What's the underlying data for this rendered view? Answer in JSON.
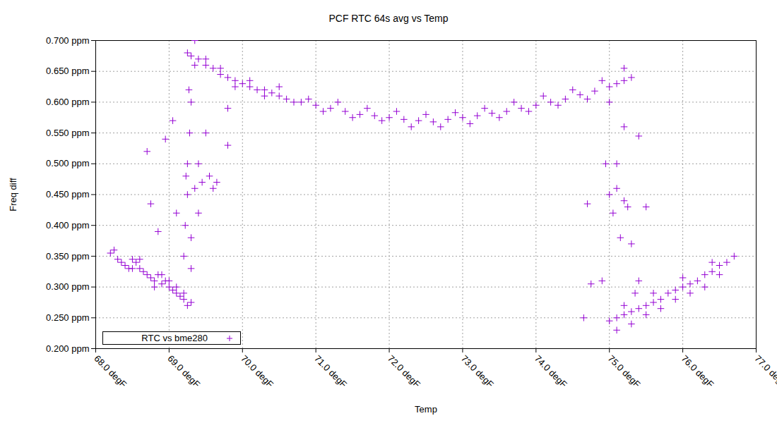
{
  "chart_data": {
    "type": "scatter",
    "title": "PCF RTC 64s avg vs Temp",
    "x_label": "Temp",
    "y_label": "Freq diff",
    "xlim": [
      68,
      77
    ],
    "ylim": [
      0.2,
      0.7
    ],
    "xticks": [
      {
        "value": 68,
        "label": "68.0 degF"
      },
      {
        "value": 69,
        "label": "69.0 degF"
      },
      {
        "value": 70,
        "label": "70.0 degF"
      },
      {
        "value": 71,
        "label": "71.0 degF"
      },
      {
        "value": 72,
        "label": "72.0 degF"
      },
      {
        "value": 73,
        "label": "73.0 degF"
      },
      {
        "value": 74,
        "label": "74.0 degF"
      },
      {
        "value": 75,
        "label": "75.0 degF"
      },
      {
        "value": 76,
        "label": "76.0 degF"
      },
      {
        "value": 77,
        "label": "77.0 degF"
      }
    ],
    "yticks": [
      {
        "value": 0.2,
        "label": "0.200 ppm"
      },
      {
        "value": 0.25,
        "label": "0.250 ppm"
      },
      {
        "value": 0.3,
        "label": "0.300 ppm"
      },
      {
        "value": 0.35,
        "label": "0.350 ppm"
      },
      {
        "value": 0.4,
        "label": "0.400 ppm"
      },
      {
        "value": 0.45,
        "label": "0.450 ppm"
      },
      {
        "value": 0.5,
        "label": "0.500 ppm"
      },
      {
        "value": 0.55,
        "label": "0.550 ppm"
      },
      {
        "value": 0.6,
        "label": "0.600 ppm"
      },
      {
        "value": 0.65,
        "label": "0.650 ppm"
      },
      {
        "value": 0.7,
        "label": "0.700 ppm"
      }
    ],
    "grid": true,
    "legend": "bottom left",
    "series": [
      {
        "name": "RTC vs bme280",
        "color": "#9400d3",
        "marker": "plus",
        "x": [
          68.2,
          68.25,
          68.3,
          68.35,
          68.4,
          68.45,
          68.5,
          68.55,
          68.6,
          68.65,
          68.7,
          68.75,
          68.8,
          68.85,
          68.9,
          68.95,
          69.0,
          69.05,
          69.1,
          69.15,
          69.2,
          69.25,
          69.3,
          68.5,
          68.6,
          68.8,
          68.9,
          69.0,
          69.1,
          69.2,
          69.2,
          69.22,
          69.25,
          69.25,
          69.23,
          69.28,
          69.3,
          69.27,
          69.3,
          69.35,
          69.4,
          69.45,
          69.5,
          69.55,
          69.6,
          69.65,
          69.4,
          69.3,
          69.1,
          69.05,
          68.95,
          68.7,
          68.75,
          68.85,
          69.8,
          69.8,
          69.35,
          69.25,
          69.3,
          69.4,
          69.5,
          69.6,
          69.7,
          69.8,
          69.9,
          70.0,
          70.1,
          70.2,
          70.3,
          70.4,
          70.5,
          70.6,
          70.8,
          71.0,
          71.2,
          71.4,
          71.6,
          71.8,
          72.0,
          72.2,
          72.4,
          72.6,
          72.8,
          73.0,
          73.2,
          73.4,
          73.6,
          73.8,
          74.0,
          74.2,
          74.4,
          74.6,
          74.8,
          75.0,
          75.1,
          75.2,
          75.3,
          69.35,
          69.5,
          69.7,
          69.9,
          70.1,
          70.3,
          70.5,
          70.7,
          70.9,
          71.1,
          71.3,
          71.5,
          71.7,
          71.9,
          72.1,
          72.3,
          72.5,
          72.7,
          72.9,
          73.1,
          73.3,
          73.5,
          73.7,
          73.9,
          74.1,
          74.3,
          74.5,
          74.7,
          74.9,
          75.2,
          75.0,
          74.95,
          75.0,
          75.05,
          75.1,
          75.15,
          75.2,
          75.25,
          75.3,
          75.35,
          75.4,
          75.5,
          75.4,
          75.2,
          74.9,
          74.7,
          74.75,
          74.65,
          75.1,
          75.0,
          75.1,
          75.2,
          75.3,
          75.4,
          75.5,
          75.6,
          75.7,
          75.8,
          75.9,
          76.0,
          76.1,
          76.2,
          76.3,
          76.4,
          76.5,
          76.6,
          76.7,
          75.1,
          75.3,
          75.5,
          75.7,
          75.9,
          76.1,
          76.3,
          76.5,
          75.2,
          75.6,
          76.0,
          76.4
        ],
        "values": [
          0.355,
          0.36,
          0.345,
          0.34,
          0.335,
          0.33,
          0.345,
          0.34,
          0.33,
          0.325,
          0.32,
          0.315,
          0.31,
          0.32,
          0.305,
          0.31,
          0.3,
          0.295,
          0.29,
          0.285,
          0.28,
          0.27,
          0.275,
          0.33,
          0.345,
          0.3,
          0.32,
          0.31,
          0.3,
          0.29,
          0.35,
          0.4,
          0.45,
          0.5,
          0.48,
          0.55,
          0.6,
          0.62,
          0.38,
          0.46,
          0.5,
          0.47,
          0.55,
          0.48,
          0.46,
          0.47,
          0.42,
          0.33,
          0.42,
          0.57,
          0.54,
          0.52,
          0.435,
          0.39,
          0.53,
          0.59,
          0.7,
          0.68,
          0.675,
          0.67,
          0.66,
          0.655,
          0.645,
          0.64,
          0.635,
          0.63,
          0.625,
          0.62,
          0.62,
          0.615,
          0.61,
          0.605,
          0.6,
          0.595,
          0.59,
          0.585,
          0.58,
          0.578,
          0.575,
          0.572,
          0.57,
          0.568,
          0.572,
          0.575,
          0.578,
          0.582,
          0.585,
          0.59,
          0.595,
          0.6,
          0.605,
          0.612,
          0.618,
          0.625,
          0.63,
          0.635,
          0.64,
          0.66,
          0.67,
          0.655,
          0.625,
          0.635,
          0.61,
          0.625,
          0.6,
          0.605,
          0.585,
          0.6,
          0.575,
          0.59,
          0.57,
          0.585,
          0.56,
          0.58,
          0.56,
          0.583,
          0.565,
          0.59,
          0.575,
          0.6,
          0.585,
          0.61,
          0.595,
          0.62,
          0.605,
          0.635,
          0.655,
          0.6,
          0.5,
          0.45,
          0.42,
          0.46,
          0.38,
          0.44,
          0.43,
          0.37,
          0.29,
          0.31,
          0.43,
          0.545,
          0.56,
          0.31,
          0.435,
          0.305,
          0.25,
          0.5,
          0.245,
          0.25,
          0.255,
          0.26,
          0.265,
          0.27,
          0.275,
          0.28,
          0.29,
          0.295,
          0.3,
          0.305,
          0.31,
          0.32,
          0.325,
          0.335,
          0.34,
          0.35,
          0.23,
          0.24,
          0.255,
          0.265,
          0.28,
          0.29,
          0.3,
          0.32,
          0.27,
          0.29,
          0.315,
          0.34
        ]
      }
    ]
  }
}
